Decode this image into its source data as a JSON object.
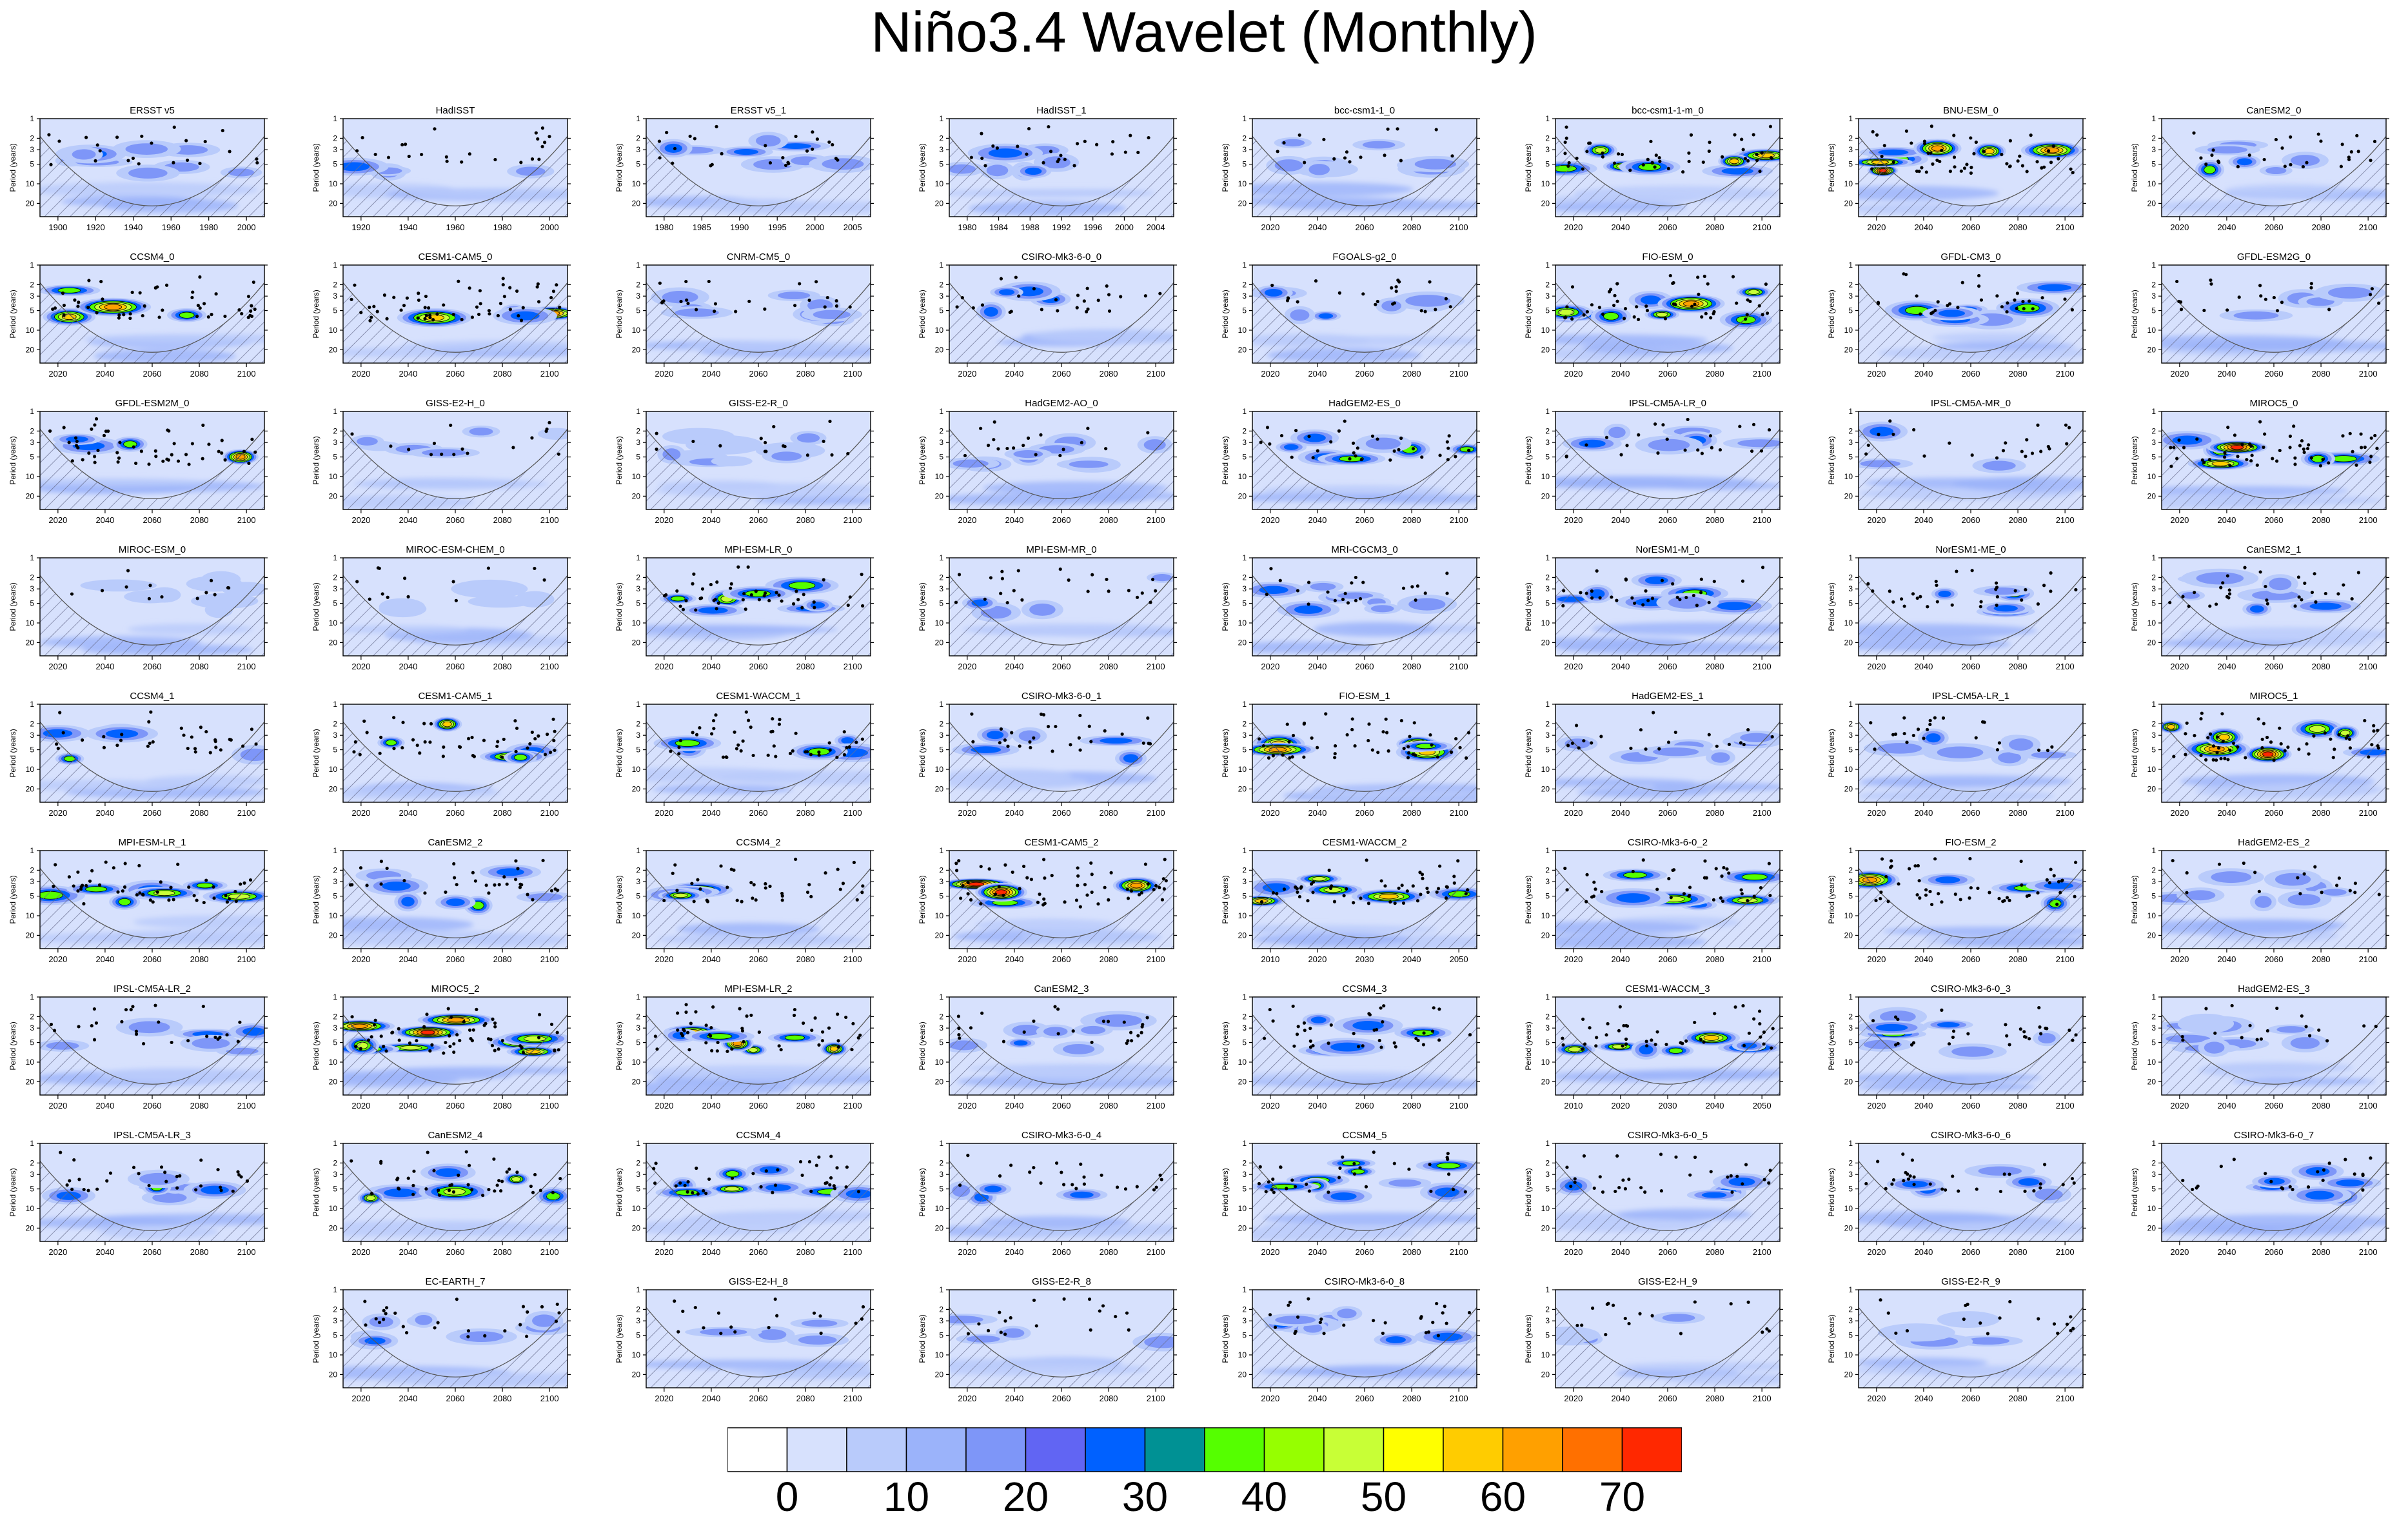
{
  "figure_title": "Niño3.4 Wavelet (Monthly)",
  "chart_data": {
    "type": "heatmap",
    "title": "Niño3.4 Wavelet (Monthly)",
    "ylabel": "Period (years)",
    "y_ticks": [
      "1",
      "2",
      "3",
      "5",
      "10",
      "20"
    ],
    "colorbar": {
      "colors": [
        "#ffffff",
        "#d7e1fd",
        "#b9cbfb",
        "#9bb3fa",
        "#7e96f8",
        "#6165f3",
        "#0061ff",
        "#009194",
        "#55ff00",
        "#96ff00",
        "#c8ff36",
        "#ffff00",
        "#ffcc00",
        "#ffa000",
        "#ff7000",
        "#ff2800"
      ],
      "tick_labels": [
        "0",
        "10",
        "20",
        "30",
        "40",
        "50",
        "60",
        "70"
      ]
    },
    "panels": [
      {
        "name": "ERSST v5",
        "x_ticks": [
          "1900",
          "1920",
          "1940",
          "1960",
          "1980",
          "2000"
        ],
        "intensity": 0.3
      },
      {
        "name": "HadISST",
        "x_ticks": [
          "1920",
          "1940",
          "1960",
          "1980",
          "2000"
        ],
        "intensity": 0.3
      },
      {
        "name": "ERSST v5_1",
        "x_ticks": [
          "1980",
          "1985",
          "1990",
          "1995",
          "2000",
          "2005"
        ],
        "intensity": 0.35
      },
      {
        "name": "HadISST_1",
        "x_ticks": [
          "1980",
          "1984",
          "1988",
          "1992",
          "1996",
          "2000",
          "2004"
        ],
        "intensity": 0.35
      },
      {
        "name": "bcc-csm1-1_0",
        "x_ticks": [
          "2020",
          "2040",
          "2060",
          "2080",
          "2100"
        ],
        "intensity": 0.15
      },
      {
        "name": "bcc-csm1-1-m_0",
        "x_ticks": [
          "2020",
          "2040",
          "2060",
          "2080",
          "2100"
        ],
        "intensity": 0.8
      },
      {
        "name": "BNU-ESM_0",
        "x_ticks": [
          "2020",
          "2040",
          "2060",
          "2080",
          "2100"
        ],
        "intensity": 0.9
      },
      {
        "name": "CanESM2_0",
        "x_ticks": [
          "2020",
          "2040",
          "2060",
          "2080",
          "2100"
        ],
        "intensity": 0.4
      },
      {
        "name": "CCSM4_0",
        "x_ticks": [
          "2020",
          "2040",
          "2060",
          "2080",
          "2100"
        ],
        "intensity": 0.8
      },
      {
        "name": "CESM1-CAM5_0",
        "x_ticks": [
          "2020",
          "2040",
          "2060",
          "2080",
          "2100"
        ],
        "intensity": 0.95
      },
      {
        "name": "CNRM-CM5_0",
        "x_ticks": [
          "2020",
          "2040",
          "2060",
          "2080",
          "2100"
        ],
        "intensity": 0.3
      },
      {
        "name": "CSIRO-Mk3-6-0_0",
        "x_ticks": [
          "2020",
          "2040",
          "2060",
          "2080",
          "2100"
        ],
        "intensity": 0.35
      },
      {
        "name": "FGOALS-g2_0",
        "x_ticks": [
          "2020",
          "2040",
          "2060",
          "2080",
          "2100"
        ],
        "intensity": 0.3
      },
      {
        "name": "FIO-ESM_0",
        "x_ticks": [
          "2020",
          "2040",
          "2060",
          "2080",
          "2100"
        ],
        "intensity": 0.85
      },
      {
        "name": "GFDL-CM3_0",
        "x_ticks": [
          "2020",
          "2040",
          "2060",
          "2080",
          "2100"
        ],
        "intensity": 0.45
      },
      {
        "name": "GFDL-ESM2G_0",
        "x_ticks": [
          "2020",
          "2040",
          "2060",
          "2080",
          "2100"
        ],
        "intensity": 0.25
      },
      {
        "name": "GFDL-ESM2M_0",
        "x_ticks": [
          "2020",
          "2040",
          "2060",
          "2080",
          "2100"
        ],
        "intensity": 0.85
      },
      {
        "name": "GISS-E2-H_0",
        "x_ticks": [
          "2020",
          "2040",
          "2060",
          "2080",
          "2100"
        ],
        "intensity": 0.15
      },
      {
        "name": "GISS-E2-R_0",
        "x_ticks": [
          "2020",
          "2040",
          "2060",
          "2080",
          "2100"
        ],
        "intensity": 0.15
      },
      {
        "name": "HadGEM2-AO_0",
        "x_ticks": [
          "2020",
          "2040",
          "2060",
          "2080",
          "2100"
        ],
        "intensity": 0.2
      },
      {
        "name": "HadGEM2-ES_0",
        "x_ticks": [
          "2020",
          "2040",
          "2060",
          "2080",
          "2100"
        ],
        "intensity": 0.5
      },
      {
        "name": "IPSL-CM5A-LR_0",
        "x_ticks": [
          "2020",
          "2040",
          "2060",
          "2080",
          "2100"
        ],
        "intensity": 0.3
      },
      {
        "name": "IPSL-CM5A-MR_0",
        "x_ticks": [
          "2020",
          "2040",
          "2060",
          "2080",
          "2100"
        ],
        "intensity": 0.3
      },
      {
        "name": "MIROC5_0",
        "x_ticks": [
          "2020",
          "2040",
          "2060",
          "2080",
          "2100"
        ],
        "intensity": 0.95
      },
      {
        "name": "MIROC-ESM_0",
        "x_ticks": [
          "2020",
          "2040",
          "2060",
          "2080",
          "2100"
        ],
        "intensity": 0.1
      },
      {
        "name": "MIROC-ESM-CHEM_0",
        "x_ticks": [
          "2020",
          "2040",
          "2060",
          "2080",
          "2100"
        ],
        "intensity": 0.1
      },
      {
        "name": "MPI-ESM-LR_0",
        "x_ticks": [
          "2020",
          "2040",
          "2060",
          "2080",
          "2100"
        ],
        "intensity": 0.75
      },
      {
        "name": "MPI-ESM-MR_0",
        "x_ticks": [
          "2020",
          "2040",
          "2060",
          "2080",
          "2100"
        ],
        "intensity": 0.3
      },
      {
        "name": "MRI-CGCM3_0",
        "x_ticks": [
          "2020",
          "2040",
          "2060",
          "2080",
          "2100"
        ],
        "intensity": 0.3
      },
      {
        "name": "NorESM1-M_0",
        "x_ticks": [
          "2020",
          "2040",
          "2060",
          "2080",
          "2100"
        ],
        "intensity": 0.45
      },
      {
        "name": "NorESM1-ME_0",
        "x_ticks": [
          "2020",
          "2040",
          "2060",
          "2080",
          "2100"
        ],
        "intensity": 0.45
      },
      {
        "name": "CanESM2_1",
        "x_ticks": [
          "2020",
          "2040",
          "2060",
          "2080",
          "2100"
        ],
        "intensity": 0.45
      },
      {
        "name": "CCSM4_1",
        "x_ticks": [
          "2020",
          "2040",
          "2060",
          "2080",
          "2100"
        ],
        "intensity": 0.5
      },
      {
        "name": "CESM1-CAM5_1",
        "x_ticks": [
          "2020",
          "2040",
          "2060",
          "2080",
          "2100"
        ],
        "intensity": 0.75
      },
      {
        "name": "CESM1-WACCM_1",
        "x_ticks": [
          "2020",
          "2040",
          "2060",
          "2080",
          "2100"
        ],
        "intensity": 0.8
      },
      {
        "name": "CSIRO-Mk3-6-0_1",
        "x_ticks": [
          "2020",
          "2040",
          "2060",
          "2080",
          "2100"
        ],
        "intensity": 0.4
      },
      {
        "name": "FIO-ESM_1",
        "x_ticks": [
          "2020",
          "2040",
          "2060",
          "2080",
          "2100"
        ],
        "intensity": 0.8
      },
      {
        "name": "HadGEM2-ES_1",
        "x_ticks": [
          "2020",
          "2040",
          "2060",
          "2080",
          "2100"
        ],
        "intensity": 0.25
      },
      {
        "name": "IPSL-CM5A-LR_1",
        "x_ticks": [
          "2020",
          "2040",
          "2060",
          "2080",
          "2100"
        ],
        "intensity": 0.3
      },
      {
        "name": "MIROC5_1",
        "x_ticks": [
          "2020",
          "2040",
          "2060",
          "2080",
          "2100"
        ],
        "intensity": 1.0
      },
      {
        "name": "MPI-ESM-LR_1",
        "x_ticks": [
          "2020",
          "2040",
          "2060",
          "2080",
          "2100"
        ],
        "intensity": 0.8
      },
      {
        "name": "CanESM2_2",
        "x_ticks": [
          "2020",
          "2040",
          "2060",
          "2080",
          "2100"
        ],
        "intensity": 0.5
      },
      {
        "name": "CCSM4_2",
        "x_ticks": [
          "2020",
          "2040",
          "2060",
          "2080",
          "2100"
        ],
        "intensity": 0.6
      },
      {
        "name": "CESM1-CAM5_2",
        "x_ticks": [
          "2020",
          "2040",
          "2060",
          "2080",
          "2100"
        ],
        "intensity": 1.0
      },
      {
        "name": "CESM1-WACCM_2",
        "x_ticks": [
          "2010",
          "2020",
          "2030",
          "2040",
          "2050"
        ],
        "intensity": 0.85
      },
      {
        "name": "CSIRO-Mk3-6-0_2",
        "x_ticks": [
          "2020",
          "2040",
          "2060",
          "2080",
          "2100"
        ],
        "intensity": 0.6
      },
      {
        "name": "FIO-ESM_2",
        "x_ticks": [
          "2020",
          "2040",
          "2060",
          "2080",
          "2100"
        ],
        "intensity": 0.85
      },
      {
        "name": "HadGEM2-ES_2",
        "x_ticks": [
          "2020",
          "2040",
          "2060",
          "2080",
          "2100"
        ],
        "intensity": 0.2
      },
      {
        "name": "IPSL-CM5A-LR_2",
        "x_ticks": [
          "2020",
          "2040",
          "2060",
          "2080",
          "2100"
        ],
        "intensity": 0.35
      },
      {
        "name": "MIROC5_2",
        "x_ticks": [
          "2020",
          "2040",
          "2060",
          "2080",
          "2100"
        ],
        "intensity": 1.0
      },
      {
        "name": "MPI-ESM-LR_2",
        "x_ticks": [
          "2020",
          "2040",
          "2060",
          "2080",
          "2100"
        ],
        "intensity": 0.85
      },
      {
        "name": "CanESM2_3",
        "x_ticks": [
          "2020",
          "2040",
          "2060",
          "2080",
          "2100"
        ],
        "intensity": 0.35
      },
      {
        "name": "CCSM4_3",
        "x_ticks": [
          "2020",
          "2040",
          "2060",
          "2080",
          "2100"
        ],
        "intensity": 0.6
      },
      {
        "name": "CESM1-WACCM_3",
        "x_ticks": [
          "2010",
          "2020",
          "2030",
          "2040",
          "2050"
        ],
        "intensity": 0.7
      },
      {
        "name": "CSIRO-Mk3-6-0_3",
        "x_ticks": [
          "2020",
          "2040",
          "2060",
          "2080",
          "2100"
        ],
        "intensity": 0.4
      },
      {
        "name": "HadGEM2-ES_3",
        "x_ticks": [
          "2020",
          "2040",
          "2060",
          "2080",
          "2100"
        ],
        "intensity": 0.2
      },
      {
        "name": "IPSL-CM5A-LR_3",
        "x_ticks": [
          "2020",
          "2040",
          "2060",
          "2080",
          "2100"
        ],
        "intensity": 0.45
      },
      {
        "name": "CanESM2_4",
        "x_ticks": [
          "2020",
          "2040",
          "2060",
          "2080",
          "2100"
        ],
        "intensity": 0.7
      },
      {
        "name": "CCSM4_4",
        "x_ticks": [
          "2020",
          "2040",
          "2060",
          "2080",
          "2100"
        ],
        "intensity": 0.6
      },
      {
        "name": "CSIRO-Mk3-6-0_4",
        "x_ticks": [
          "2020",
          "2040",
          "2060",
          "2080",
          "2100"
        ],
        "intensity": 0.3
      },
      {
        "name": "CCSM4_5",
        "x_ticks": [
          "2020",
          "2040",
          "2060",
          "2080",
          "2100"
        ],
        "intensity": 0.5
      },
      {
        "name": "CSIRO-Mk3-6-0_5",
        "x_ticks": [
          "2020",
          "2040",
          "2060",
          "2080",
          "2100"
        ],
        "intensity": 0.45
      },
      {
        "name": "CSIRO-Mk3-6-0_6",
        "x_ticks": [
          "2020",
          "2040",
          "2060",
          "2080",
          "2100"
        ],
        "intensity": 0.45
      },
      {
        "name": "CSIRO-Mk3-6-0_7",
        "x_ticks": [
          "2020",
          "2040",
          "2060",
          "2080",
          "2100"
        ],
        "intensity": 0.3
      },
      {
        "name": "EC-EARTH_7",
        "x_ticks": [
          "2020",
          "2040",
          "2060",
          "2080",
          "2100"
        ],
        "intensity": 0.35
      },
      {
        "name": "GISS-E2-H_8",
        "x_ticks": [
          "2020",
          "2040",
          "2060",
          "2080",
          "2100"
        ],
        "intensity": 0.2
      },
      {
        "name": "GISS-E2-R_8",
        "x_ticks": [
          "2020",
          "2040",
          "2060",
          "2080",
          "2100"
        ],
        "intensity": 0.2
      },
      {
        "name": "CSIRO-Mk3-6-0_8",
        "x_ticks": [
          "2020",
          "2040",
          "2060",
          "2080",
          "2100"
        ],
        "intensity": 0.35
      },
      {
        "name": "GISS-E2-H_9",
        "x_ticks": [
          "2020",
          "2040",
          "2060",
          "2080",
          "2100"
        ],
        "intensity": 0.2
      },
      {
        "name": "GISS-E2-R_9",
        "x_ticks": [
          "2020",
          "2040",
          "2060",
          "2080",
          "2100"
        ],
        "intensity": 0.2
      }
    ]
  }
}
